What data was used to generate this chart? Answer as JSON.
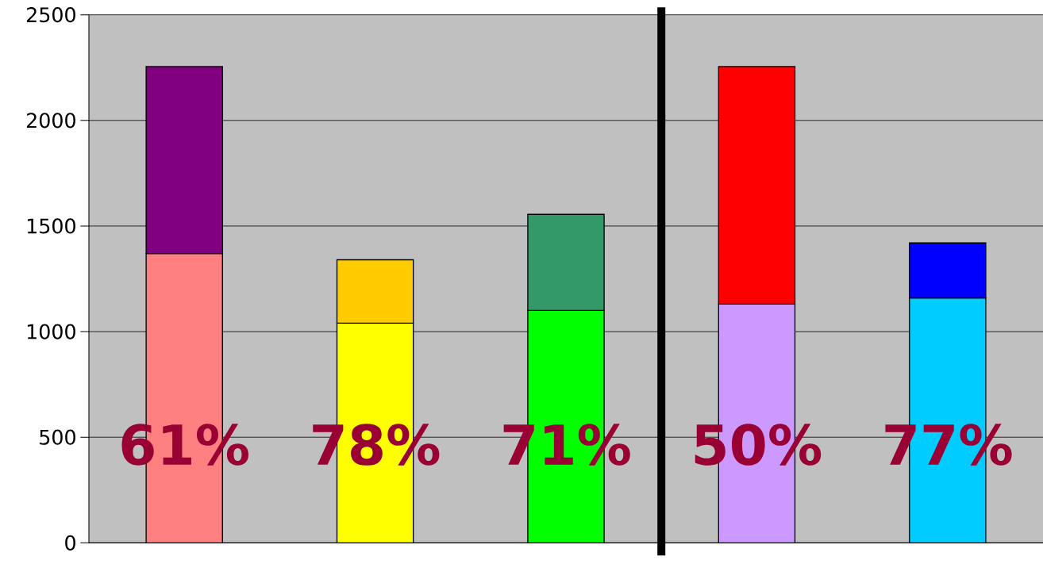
{
  "chart_data": {
    "type": "bar",
    "stacked": true,
    "categories": [
      null,
      null,
      null,
      null,
      null
    ],
    "series": [
      {
        "colors": [
          "#ff8080",
          "#ffff00",
          "#00ff00",
          "#cc99ff",
          "#00ccff"
        ],
        "values": [
          1370,
          1040,
          1100,
          1130,
          1160
        ]
      },
      {
        "colors": [
          "#800080",
          "#ffcc00",
          "#339966",
          "#ff0000",
          "#0000ff"
        ],
        "values": [
          885,
          300,
          455,
          1125,
          260
        ]
      }
    ],
    "ylim": [
      0,
      2500
    ],
    "yticks": [
      0,
      500,
      1000,
      1500,
      2000,
      2500
    ],
    "grid": "y",
    "tick_labels": "y",
    "annotations": [
      "61%",
      "78%",
      "71%",
      "50%",
      "77%"
    ]
  }
}
